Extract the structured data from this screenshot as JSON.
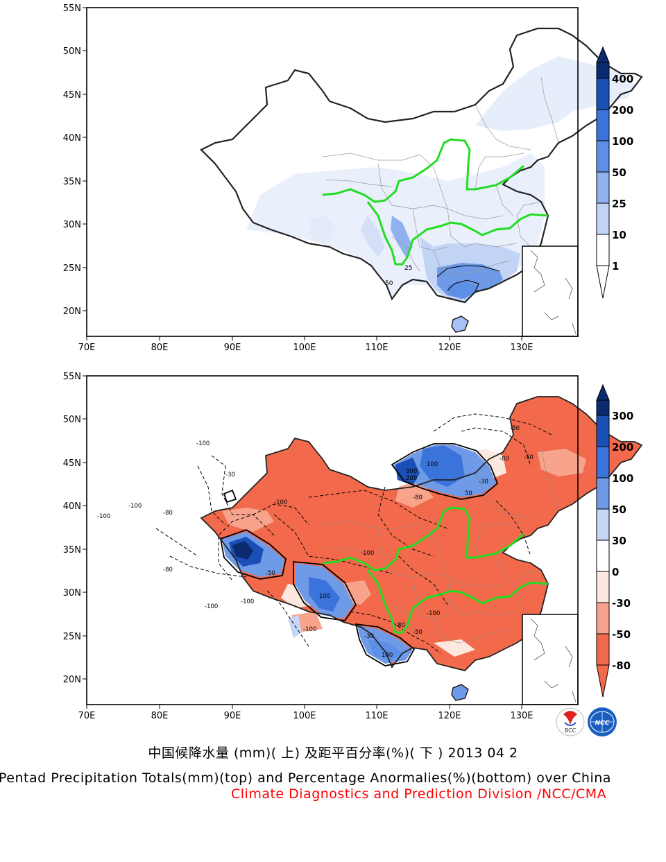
{
  "maps": [
    {
      "id": "top",
      "lat_ticks": [
        "55N",
        "50N",
        "45N",
        "40N",
        "35N",
        "30N",
        "25N",
        "20N"
      ],
      "lon_ticks": [
        "70E",
        "80E",
        "90E",
        "100E",
        "110E",
        "120E",
        "130E"
      ],
      "contour_labels": [
        "25",
        "50"
      ],
      "colorbar": {
        "labels": [
          "400",
          "200",
          "100",
          "50",
          "25",
          "10",
          "1"
        ],
        "colors": [
          "#0b2a6f",
          "#1a4fb5",
          "#3a73d9",
          "#5d8fe6",
          "#8fb1ee",
          "#c2d4f6",
          "#ffffff"
        ]
      }
    },
    {
      "id": "bottom",
      "lat_ticks": [
        "55N",
        "50N",
        "45N",
        "40N",
        "35N",
        "30N",
        "25N",
        "20N"
      ],
      "lon_ticks": [
        "70E",
        "80E",
        "90E",
        "100E",
        "110E",
        "120E",
        "130E"
      ],
      "contour_labels": [
        "-100",
        "-100",
        "-100",
        "-50",
        "-80",
        "-30",
        "-100",
        "300",
        "200",
        "100",
        "50",
        "-100",
        "-100",
        "-80",
        "-100",
        "-80",
        "-30",
        "100",
        "-100",
        "-80",
        "-50",
        "100",
        "-30",
        "-50",
        "-80",
        "-50",
        "-100"
      ],
      "colorbar": {
        "labels": [
          "300",
          "200",
          "100",
          "50",
          "30",
          "0",
          "-30",
          "-50",
          "-80"
        ],
        "colors": [
          "#0b2a6f",
          "#1a4fb5",
          "#3a73d9",
          "#6f9ae8",
          "#c6d6f6",
          "#ffffff",
          "#fde8e0",
          "#f8a48c",
          "#f26a4b"
        ]
      }
    }
  ],
  "logos": {
    "left": "BCC",
    "right": "NCC"
  },
  "caption": {
    "cn": "中国候降水量 (mm)( 上) 及距平百分率(%)( 下 ) 2013 04 2",
    "en": "Pentad Precipitation Totals(mm)(top) and Percentage Anormalies(%)(bottom) over China",
    "credit": "Climate Diagnostics and Prediction Division /NCC/CMA"
  },
  "colors": {
    "yellow_river_yangtze": "#22dd22",
    "frame": "#000000"
  }
}
